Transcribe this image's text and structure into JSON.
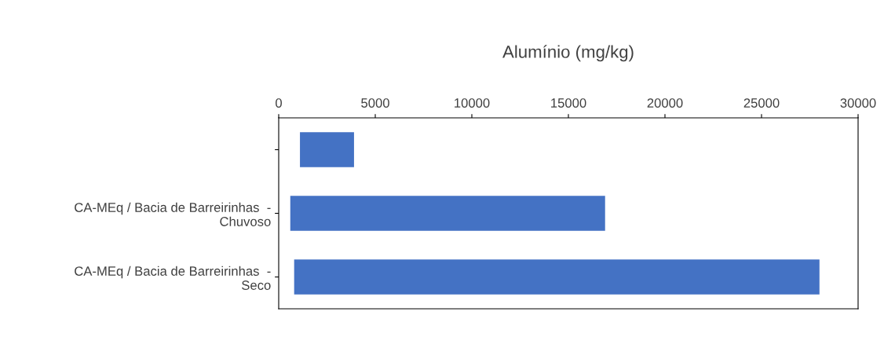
{
  "chart_data": {
    "type": "bar",
    "orientation": "horizontal",
    "title": "Alumínio (mg/kg)",
    "categories": [
      null,
      "CA-MEq / Bacia de Barreirinhas  -\nChuvoso",
      "CA-MEq / Bacia de Barreirinhas  -\nSeco"
    ],
    "base": [
      1100,
      600,
      800
    ],
    "values": [
      2800,
      16300,
      27200
    ],
    "color": "#4472c4",
    "xlim": [
      0,
      30000
    ],
    "xticks": [
      0,
      5000,
      10000,
      15000,
      20000,
      25000,
      30000
    ],
    "grid": false,
    "legend": false
  }
}
